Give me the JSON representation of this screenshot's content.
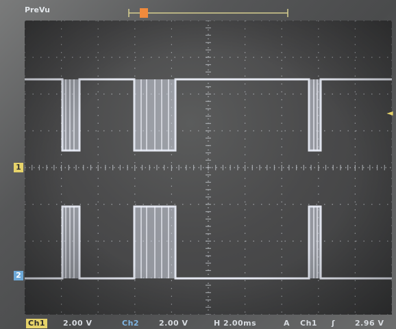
{
  "header": {
    "mode_label": "PreVu",
    "trigger_marker": "U"
  },
  "markers": {
    "ch1_ground": "1",
    "ch2_ground": "2",
    "trigger_level": "◄"
  },
  "status_bar": {
    "ch1_label": "Ch1",
    "ch1_scale": "2.00 V",
    "ch2_label": "Ch2",
    "ch2_scale": "2.00 V",
    "horizontal": "H 2.00ms",
    "acq": "A",
    "trigger_source": "Ch1",
    "trigger_slope": "ʃ",
    "trigger_level": "2.96 V"
  },
  "colors": {
    "trace": "#e3e6ef",
    "grid": "#b9bdc2",
    "ch1_accent": "#e6d36a",
    "ch2_accent": "#6ea9d8",
    "trigger_accent": "#f08a3c"
  }
}
